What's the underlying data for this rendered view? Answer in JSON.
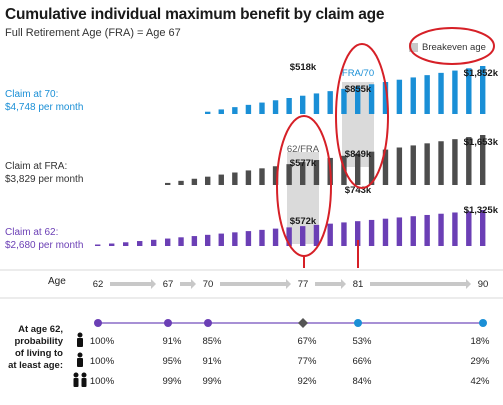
{
  "title": "Cumulative individual maximum benefit by claim age",
  "subtitle": "Full Retirement Age (FRA) = Age 67",
  "legend": {
    "label": "Breakeven age",
    "swatch_color": "#c8c8c8"
  },
  "colors": {
    "claim70": "#1a8fd6",
    "claimFRA": "#4d4d4d",
    "claim62": "#6b3fb5",
    "highlight": "#d62027",
    "breakeven": "#d4d4d4"
  },
  "claims": [
    {
      "line1": "Claim at 70:",
      "line2": "$4,748 per month"
    },
    {
      "line1": "Claim at FRA:",
      "line2": "$3,829 per month"
    },
    {
      "line1": "Claim at 62:",
      "line2": "$2,680 per month"
    }
  ],
  "chart_data": {
    "type": "bar",
    "title": "Cumulative individual maximum benefit by claim age",
    "subtitle": "Full Retirement Age (FRA) = Age 67",
    "x_label": "Age",
    "x_ticks": [
      62,
      67,
      70,
      77,
      81,
      90
    ],
    "series": [
      {
        "name": "Claim at 62",
        "monthly": "$2,680 per month",
        "start_age": 62,
        "end_age": 90,
        "annotations": [
          {
            "age": 77,
            "value_k": 572,
            "label": "$572k"
          },
          {
            "age": 81,
            "value_k": 743,
            "label": "$743k"
          },
          {
            "age": 90,
            "value_k": 1325,
            "label": "$1,325k"
          }
        ]
      },
      {
        "name": "Claim at FRA",
        "monthly": "$3,829 per month",
        "start_age": 67,
        "end_age": 90,
        "annotations": [
          {
            "age": 77,
            "value_k": 577,
            "label": "$577k"
          },
          {
            "age": 81,
            "value_k": 849,
            "label": "$849k"
          },
          {
            "age": 90,
            "value_k": 1653,
            "label": "$1,653k"
          }
        ]
      },
      {
        "name": "Claim at 70",
        "monthly": "$4,748 per month",
        "start_age": 70,
        "end_age": 90,
        "annotations": [
          {
            "age": 77,
            "value_k": 518,
            "label": "$518k"
          },
          {
            "age": 81,
            "value_k": 855,
            "label": "$855k"
          },
          {
            "age": 90,
            "value_k": 1852,
            "label": "$1,852k"
          }
        ]
      }
    ],
    "breakevens": [
      {
        "age": 77,
        "label": "62/FRA"
      },
      {
        "age": 81,
        "label": "FRA/70"
      }
    ],
    "probability": {
      "label": "At age 62, probability of living to at least age:",
      "ages": [
        62,
        67,
        70,
        77,
        81,
        90
      ],
      "rows": [
        {
          "icon": "person-icon",
          "values": [
            "100%",
            "91%",
            "85%",
            "67%",
            "53%",
            "18%"
          ]
        },
        {
          "icon": "person-icon",
          "values": [
            "100%",
            "95%",
            "91%",
            "77%",
            "66%",
            "29%"
          ]
        },
        {
          "icon": "couple-icon",
          "values": [
            "100%",
            "99%",
            "99%",
            "92%",
            "84%",
            "42%"
          ]
        }
      ],
      "marker_colors": [
        "#6b3fb5",
        "#6b3fb5",
        "#6b3fb5",
        "#555555",
        "#1a8fd6",
        "#1a8fd6"
      ]
    }
  }
}
